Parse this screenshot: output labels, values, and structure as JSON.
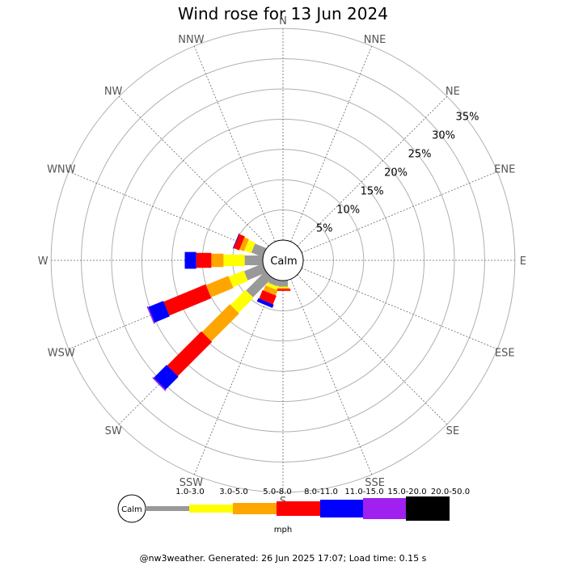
{
  "chart_data": {
    "type": "windrose",
    "title": "Wind rose for 13 Jun 2024",
    "directions": [
      "N",
      "NNE",
      "NE",
      "ENE",
      "E",
      "ESE",
      "SE",
      "SSE",
      "S",
      "SSW",
      "SW",
      "WSW",
      "W",
      "WNW",
      "NW",
      "NNW"
    ],
    "percent_rings": [
      5,
      10,
      15,
      20,
      25,
      30,
      35
    ],
    "percent_labels": [
      "5%",
      "10%",
      "15%",
      "20%",
      "25%",
      "30%",
      "35%"
    ],
    "center_label": "Calm",
    "speed_unit": "mph",
    "speed_bins": [
      {
        "label": "1.0-3.0",
        "color": "#999999"
      },
      {
        "label": "3.0-5.0",
        "color": "#ffff00"
      },
      {
        "label": "5.0-8.0",
        "color": "#ffa500"
      },
      {
        "label": "8.0-11.0",
        "color": "#ff0000"
      },
      {
        "label": "11.0-15.0",
        "color": "#0000ff"
      },
      {
        "label": "15.0-20.0",
        "color": "#a020f0"
      },
      {
        "label": "20.0-50.0",
        "color": "#000000"
      }
    ],
    "cumulative_percent": {
      "N": [
        0,
        0,
        0,
        0,
        0,
        0,
        0
      ],
      "NNE": [
        0,
        0,
        0,
        0,
        0,
        0,
        0
      ],
      "NE": [
        0,
        0,
        0,
        0,
        0,
        0,
        0
      ],
      "ENE": [
        0,
        0,
        0,
        0,
        0,
        0,
        0
      ],
      "E": [
        0,
        0,
        0,
        0,
        0,
        0,
        0
      ],
      "ESE": [
        0,
        0,
        0,
        0,
        0,
        0,
        0
      ],
      "SE": [
        0,
        0,
        0,
        0,
        0,
        0,
        0
      ],
      "SSE": [
        0,
        0,
        0,
        0,
        0,
        0,
        0
      ],
      "S": [
        1.0,
        1.2,
        1.4,
        1.7,
        1.7,
        1.7,
        1.7
      ],
      "SSW": [
        1.0,
        1.6,
        2.5,
        4.0,
        4.6,
        4.6,
        4.6
      ],
      "SW": [
        4.5,
        8.0,
        14.5,
        22.5,
        25.5,
        25.7,
        25.7
      ],
      "WSW": [
        3.3,
        6.0,
        10.0,
        17.5,
        20.2,
        20.4,
        20.4
      ],
      "W": [
        3.0,
        6.5,
        8.5,
        11.0,
        12.9,
        12.9,
        12.9
      ],
      "WNW": [
        2.0,
        3.2,
        4.0,
        5.0,
        5.1,
        5.1,
        5.1
      ],
      "NW": [
        0,
        0,
        0,
        0,
        0,
        0,
        0
      ],
      "NNW": [
        0,
        0,
        0,
        0,
        0,
        0,
        0
      ]
    },
    "grid": true
  },
  "footer": {
    "text": "@nw3weather. Generated: 26 Jun 2025 17:07; Load time: 0.15 s"
  }
}
